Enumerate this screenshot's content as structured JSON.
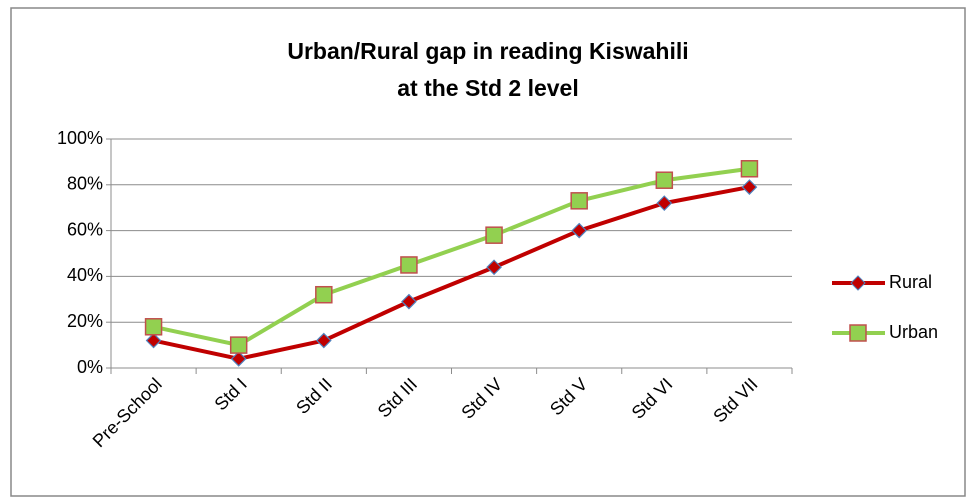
{
  "chart_data": {
    "type": "line",
    "title_lines": [
      "Urban/Rural gap in reading Kiswahili",
      "at the Std 2 level"
    ],
    "categories": [
      "Pre-School",
      "Std I",
      "Std II",
      "Std III",
      "Std IV",
      "Std V",
      "Std VI",
      "Std VII"
    ],
    "series": [
      {
        "name": "Rural",
        "color": "#c00000",
        "marker": "diamond",
        "marker_edge": "#4f81bd",
        "values": [
          12,
          4,
          12,
          29,
          44,
          60,
          72,
          79
        ]
      },
      {
        "name": "Urban",
        "color": "#92d050",
        "marker": "square",
        "marker_edge": "#c0504d",
        "values": [
          18,
          10,
          32,
          45,
          58,
          73,
          82,
          87
        ]
      }
    ],
    "ylim": [
      0,
      100
    ],
    "yticks": [
      {
        "value": 0,
        "label": "0%"
      },
      {
        "value": 20,
        "label": "20%"
      },
      {
        "value": 40,
        "label": "40%"
      },
      {
        "value": 60,
        "label": "60%"
      },
      {
        "value": 80,
        "label": "80%"
      },
      {
        "value": 100,
        "label": "100%"
      }
    ],
    "grid": true,
    "legend": "right"
  }
}
